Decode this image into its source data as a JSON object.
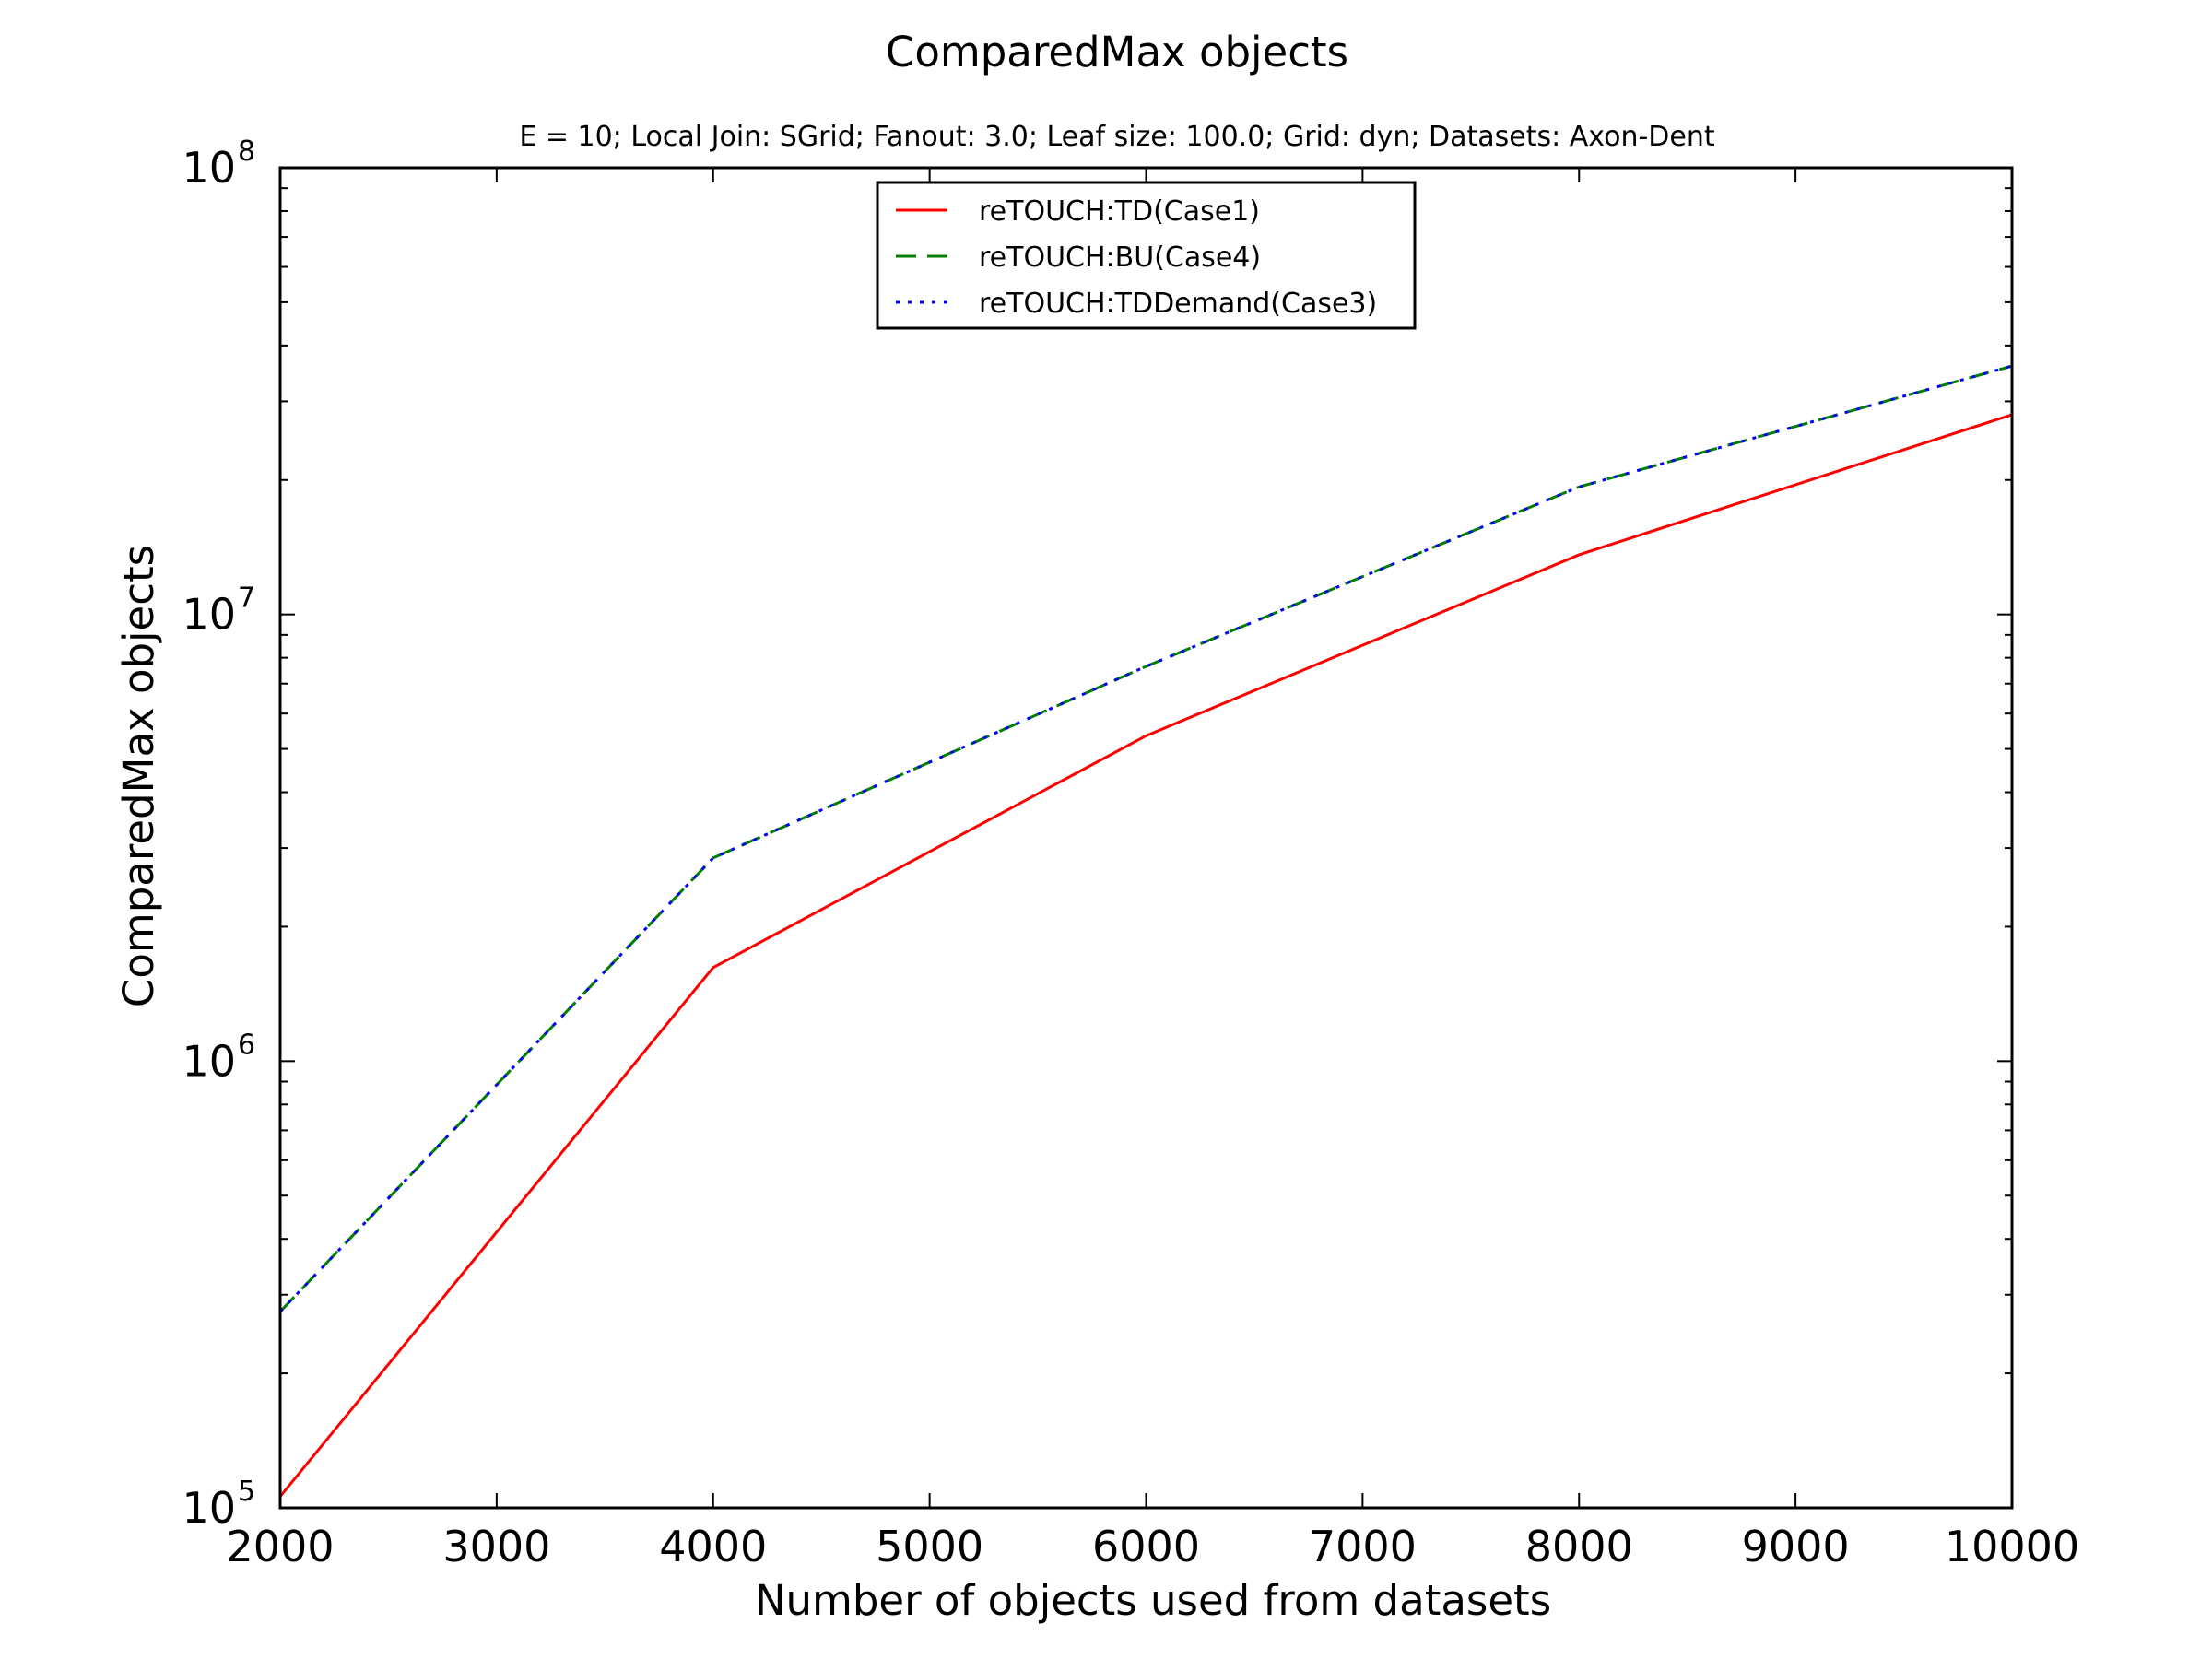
{
  "chart_data": {
    "type": "line",
    "title": "ComparedMax objects",
    "subtitle": "E = 10; Local Join: SGrid; Fanout: 3.0; Leaf size: 100.0; Grid: dyn; Datasets: Axon-Dent",
    "xlabel": "Number of objects used from datasets",
    "ylabel": "ComparedMax objects",
    "x": [
      2000,
      4000,
      6000,
      8000,
      10000
    ],
    "xlim": [
      2000,
      10000
    ],
    "xticks": [
      "2000",
      "3000",
      "4000",
      "5000",
      "6000",
      "7000",
      "8000",
      "9000",
      "10000"
    ],
    "yscale": "log",
    "ylim": [
      100000,
      100000000
    ],
    "yticks": [
      {
        "base": "10",
        "exp": "5"
      },
      {
        "base": "10",
        "exp": "6"
      },
      {
        "base": "10",
        "exp": "7"
      },
      {
        "base": "10",
        "exp": "8"
      }
    ],
    "grid": false,
    "legend_position": "upper-center",
    "series": [
      {
        "name": "reTOUCH:TD(Case1)",
        "color": "#ff0000",
        "style": "solid",
        "values": [
          106000,
          1620000,
          5350000,
          13600000,
          28000000
        ]
      },
      {
        "name": "reTOUCH:BU(Case4)",
        "color": "#007f00",
        "style": "dashed",
        "values": [
          275000,
          2850000,
          7650000,
          19300000,
          36000000
        ]
      },
      {
        "name": "reTOUCH:TDDemand(Case3)",
        "color": "#0000ff",
        "style": "dotted",
        "values": [
          275000,
          2850000,
          7650000,
          19300000,
          36000000
        ]
      }
    ]
  }
}
